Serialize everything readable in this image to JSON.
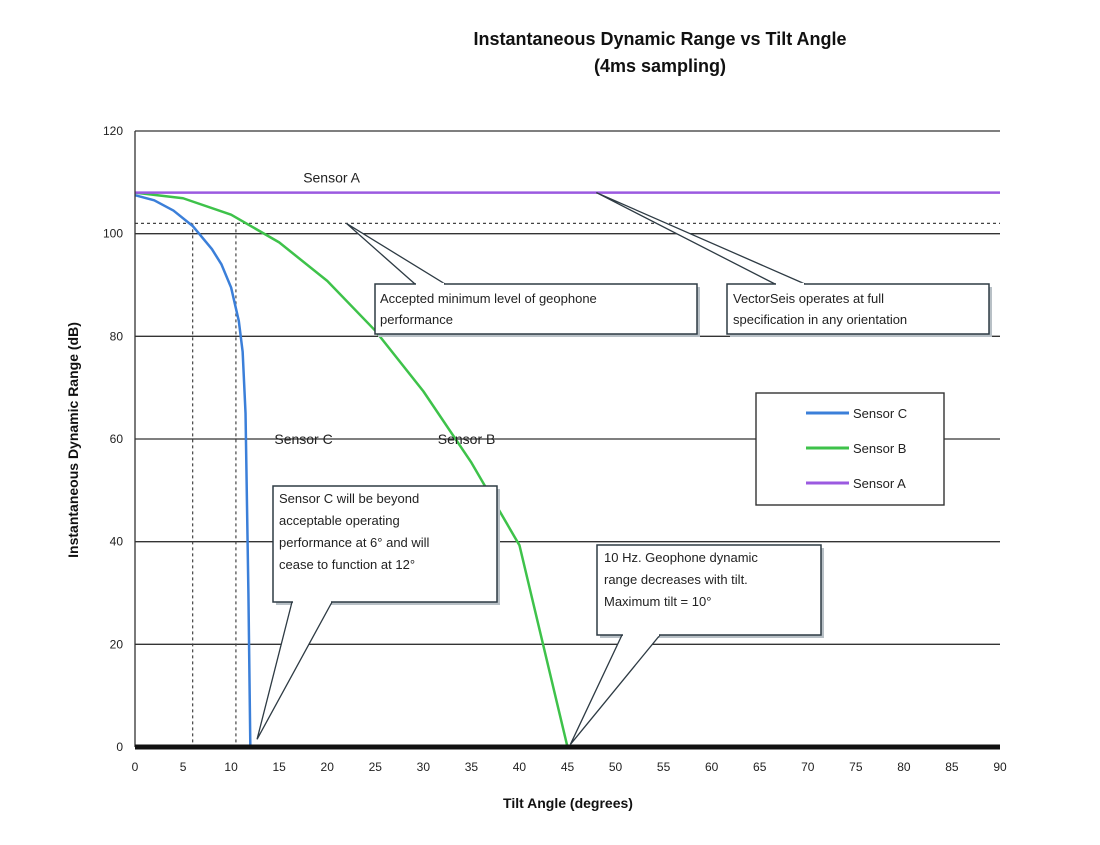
{
  "chart_data": {
    "type": "line",
    "title": "Instantaneous Dynamic Range vs Tilt Angle",
    "subtitle": "(4ms sampling)",
    "xlabel": "Tilt Angle (degrees)",
    "ylabel": "Instantaneous Dynamic Range (dB)",
    "xlim": [
      0,
      90
    ],
    "ylim": [
      0,
      120
    ],
    "xticks": [
      0,
      5,
      10,
      15,
      20,
      25,
      30,
      35,
      40,
      45,
      50,
      55,
      60,
      65,
      70,
      75,
      80,
      85,
      90
    ],
    "yticks": [
      0,
      20,
      40,
      60,
      80,
      100,
      120
    ],
    "grid": "horizontal",
    "legend_position": "right",
    "series": [
      {
        "name": "Sensor C",
        "color": "#3b7fd9",
        "x": [
          0,
          2,
          4,
          6,
          8,
          9,
          10,
          10.8,
          11.2,
          11.5,
          11.8,
          12,
          40,
          45
        ],
        "y": [
          107.5,
          106.5,
          104.5,
          101.5,
          97,
          94,
          89.5,
          83,
          77,
          65,
          30,
          0,
          0,
          0
        ]
      },
      {
        "name": "Sensor B",
        "color": "#3ec24a",
        "x": [
          0,
          5,
          10,
          15,
          20,
          25,
          30,
          35,
          40,
          45
        ],
        "y": [
          108,
          106.9,
          103.7,
          98.3,
          90.8,
          81.1,
          69.3,
          55.4,
          39.3,
          0
        ]
      },
      {
        "name": "Sensor A",
        "color": "#9b5ae0",
        "x": [
          0,
          90
        ],
        "y": [
          108,
          108
        ]
      }
    ],
    "reference_lines": {
      "min_level_y": 102,
      "vertical_x": [
        6,
        10.5
      ]
    },
    "series_labels": [
      "Sensor A",
      "Sensor B",
      "Sensor C"
    ],
    "annotations": [
      {
        "lines": [
          "Accepted minimum level of geophone",
          "performance"
        ],
        "target_x": 22,
        "target_y": 102
      },
      {
        "lines": [
          "VectorSeis operates at full",
          "specification in any orientation"
        ],
        "target_x": 48,
        "target_y": 108
      },
      {
        "lines": [
          "Sensor C will be beyond",
          "acceptable operating",
          "performance at 6° and will",
          "cease to function at 12°"
        ],
        "target_x": 12.7,
        "target_y": 1.5
      },
      {
        "lines": [
          "10 Hz. Geophone dynamic",
          "range decreases with tilt.",
          "Maximum tilt = 10°"
        ],
        "target_x": 45.3,
        "target_y": 0.5
      }
    ]
  }
}
